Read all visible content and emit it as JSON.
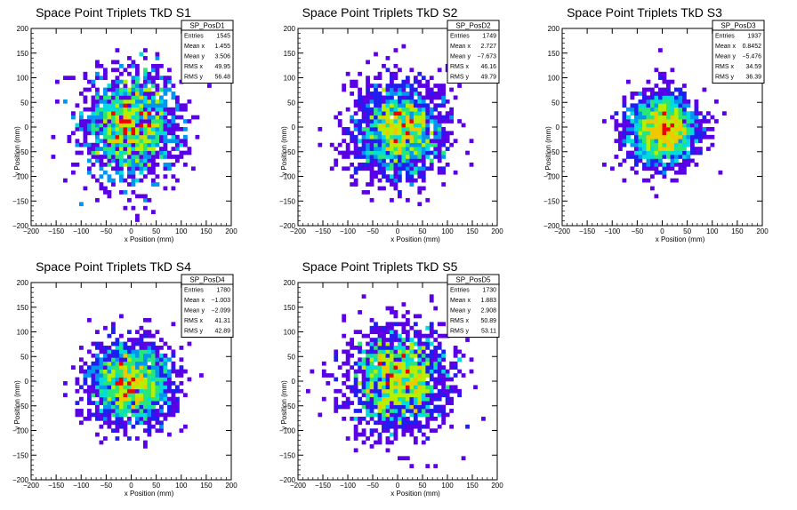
{
  "chart_data": [
    {
      "type": "heatmap",
      "title": "Space Point Triplets TkD S1",
      "xlabel": "x Position (mm)",
      "ylabel": "y Position (mm)",
      "xlim": [
        -200,
        200
      ],
      "ylim": [
        -200,
        200
      ],
      "xticks": [
        -200,
        -150,
        -100,
        -50,
        0,
        50,
        100,
        150,
        200
      ],
      "yticks": [
        -200,
        -150,
        -100,
        -50,
        0,
        50,
        100,
        150,
        200
      ],
      "stats": {
        "name": "SP_PosD1",
        "rows": [
          {
            "label": "Entries",
            "value": "1545"
          },
          {
            "label": "Mean x",
            "value": "1.455"
          },
          {
            "label": "Mean y",
            "value": "3.506"
          },
          {
            "label": "RMS x",
            "value": "49.95"
          },
          {
            "label": "RMS y",
            "value": "56.48"
          }
        ]
      },
      "distribution": {
        "entries": 1545,
        "mean_x": 1.455,
        "mean_y": 3.506,
        "rms_x": 49.95,
        "rms_y": 56.48
      }
    },
    {
      "type": "heatmap",
      "title": "Space Point Triplets TkD S2",
      "xlabel": "x Position (mm)",
      "ylabel": "y Position (mm)",
      "xlim": [
        -200,
        200
      ],
      "ylim": [
        -200,
        200
      ],
      "xticks": [
        -200,
        -150,
        -100,
        -50,
        0,
        50,
        100,
        150,
        200
      ],
      "yticks": [
        -200,
        -150,
        -100,
        -50,
        0,
        50,
        100,
        150,
        200
      ],
      "stats": {
        "name": "SP_PosD2",
        "rows": [
          {
            "label": "Entries",
            "value": "1749"
          },
          {
            "label": "Mean x",
            "value": "2.727"
          },
          {
            "label": "Mean y",
            "value": "−7.673"
          },
          {
            "label": "RMS x",
            "value": "46.16"
          },
          {
            "label": "RMS y",
            "value": "49.79"
          }
        ]
      },
      "distribution": {
        "entries": 1749,
        "mean_x": 2.727,
        "mean_y": -7.673,
        "rms_x": 46.16,
        "rms_y": 49.79
      }
    },
    {
      "type": "heatmap",
      "title": "Space Point Triplets TkD S3",
      "xlabel": "x Position (mm)",
      "ylabel": "y Position (mm)",
      "xlim": [
        -200,
        200
      ],
      "ylim": [
        -200,
        200
      ],
      "xticks": [
        -200,
        -150,
        -100,
        -50,
        0,
        50,
        100,
        150,
        200
      ],
      "yticks": [
        -200,
        -150,
        -100,
        -50,
        0,
        50,
        100,
        150,
        200
      ],
      "stats": {
        "name": "SP_PosD3",
        "rows": [
          {
            "label": "Entries",
            "value": "1937"
          },
          {
            "label": "Mean x",
            "value": "0.8452"
          },
          {
            "label": "Mean y",
            "value": "−5.476"
          },
          {
            "label": "RMS x",
            "value": "34.59"
          },
          {
            "label": "RMS y",
            "value": "36.39"
          }
        ]
      },
      "distribution": {
        "entries": 1937,
        "mean_x": 0.8452,
        "mean_y": -5.476,
        "rms_x": 34.59,
        "rms_y": 36.39
      }
    },
    {
      "type": "heatmap",
      "title": "Space Point Triplets TkD S4",
      "xlabel": "x Position (mm)",
      "ylabel": "y Position (mm)",
      "xlim": [
        -200,
        200
      ],
      "ylim": [
        -200,
        200
      ],
      "xticks": [
        -200,
        -150,
        -100,
        -50,
        0,
        50,
        100,
        150,
        200
      ],
      "yticks": [
        -200,
        -150,
        -100,
        -50,
        0,
        50,
        100,
        150,
        200
      ],
      "stats": {
        "name": "SP_PosD4",
        "rows": [
          {
            "label": "Entries",
            "value": "1780"
          },
          {
            "label": "Mean x",
            "value": "−1.003"
          },
          {
            "label": "Mean y",
            "value": "−2.099"
          },
          {
            "label": "RMS x",
            "value": "41.31"
          },
          {
            "label": "RMS y",
            "value": "42.89"
          }
        ]
      },
      "distribution": {
        "entries": 1780,
        "mean_x": -1.003,
        "mean_y": -2.099,
        "rms_x": 41.31,
        "rms_y": 42.89
      }
    },
    {
      "type": "heatmap",
      "title": "Space Point Triplets TkD S5",
      "xlabel": "x Position (mm)",
      "ylabel": "y Position (mm)",
      "xlim": [
        -200,
        200
      ],
      "ylim": [
        -200,
        200
      ],
      "xticks": [
        -200,
        -150,
        -100,
        -50,
        0,
        50,
        100,
        150,
        200
      ],
      "yticks": [
        -200,
        -150,
        -100,
        -50,
        0,
        50,
        100,
        150,
        200
      ],
      "stats": {
        "name": "SP_PosD5",
        "rows": [
          {
            "label": "Entries",
            "value": "1730"
          },
          {
            "label": "Mean x",
            "value": "1.883"
          },
          {
            "label": "Mean y",
            "value": "2.908"
          },
          {
            "label": "RMS x",
            "value": "50.89"
          },
          {
            "label": "RMS y",
            "value": "53.11"
          }
        ]
      },
      "distribution": {
        "entries": 1730,
        "mean_x": 1.883,
        "mean_y": 2.908,
        "rms_x": 50.89,
        "rms_y": 53.11
      }
    }
  ],
  "colors": {
    "palette": [
      "#5a00e6",
      "#1e1ef0",
      "#0096f0",
      "#00dcdc",
      "#28e678",
      "#b4f000",
      "#f0c800",
      "#f00000"
    ],
    "frame": "#000000",
    "background": "#ffffff"
  }
}
